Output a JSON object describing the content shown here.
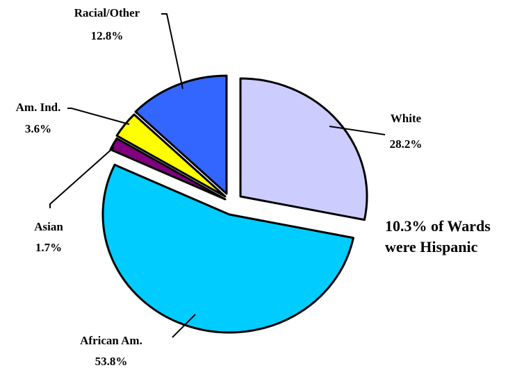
{
  "chart_data": {
    "type": "pie",
    "title": "",
    "exploded": true,
    "slices": [
      {
        "label": "White",
        "value_label": "28.2%",
        "value": 28.2,
        "color": "#ccccff"
      },
      {
        "label": "African Am.",
        "value_label": "53.8%",
        "value": 53.8,
        "color": "#00ccff"
      },
      {
        "label": "Asian",
        "value_label": "1.7%",
        "value": 1.7,
        "color": "#800080"
      },
      {
        "label": "Am. Ind.",
        "value_label": "3.6%",
        "value": 3.6,
        "color": "#ffff00"
      },
      {
        "label": "Racial/Other",
        "value_label": "12.8%",
        "value": 12.8,
        "color": "#3366ff"
      }
    ],
    "annotation": [
      "10.3% of Wards",
      "were Hispanic"
    ]
  }
}
